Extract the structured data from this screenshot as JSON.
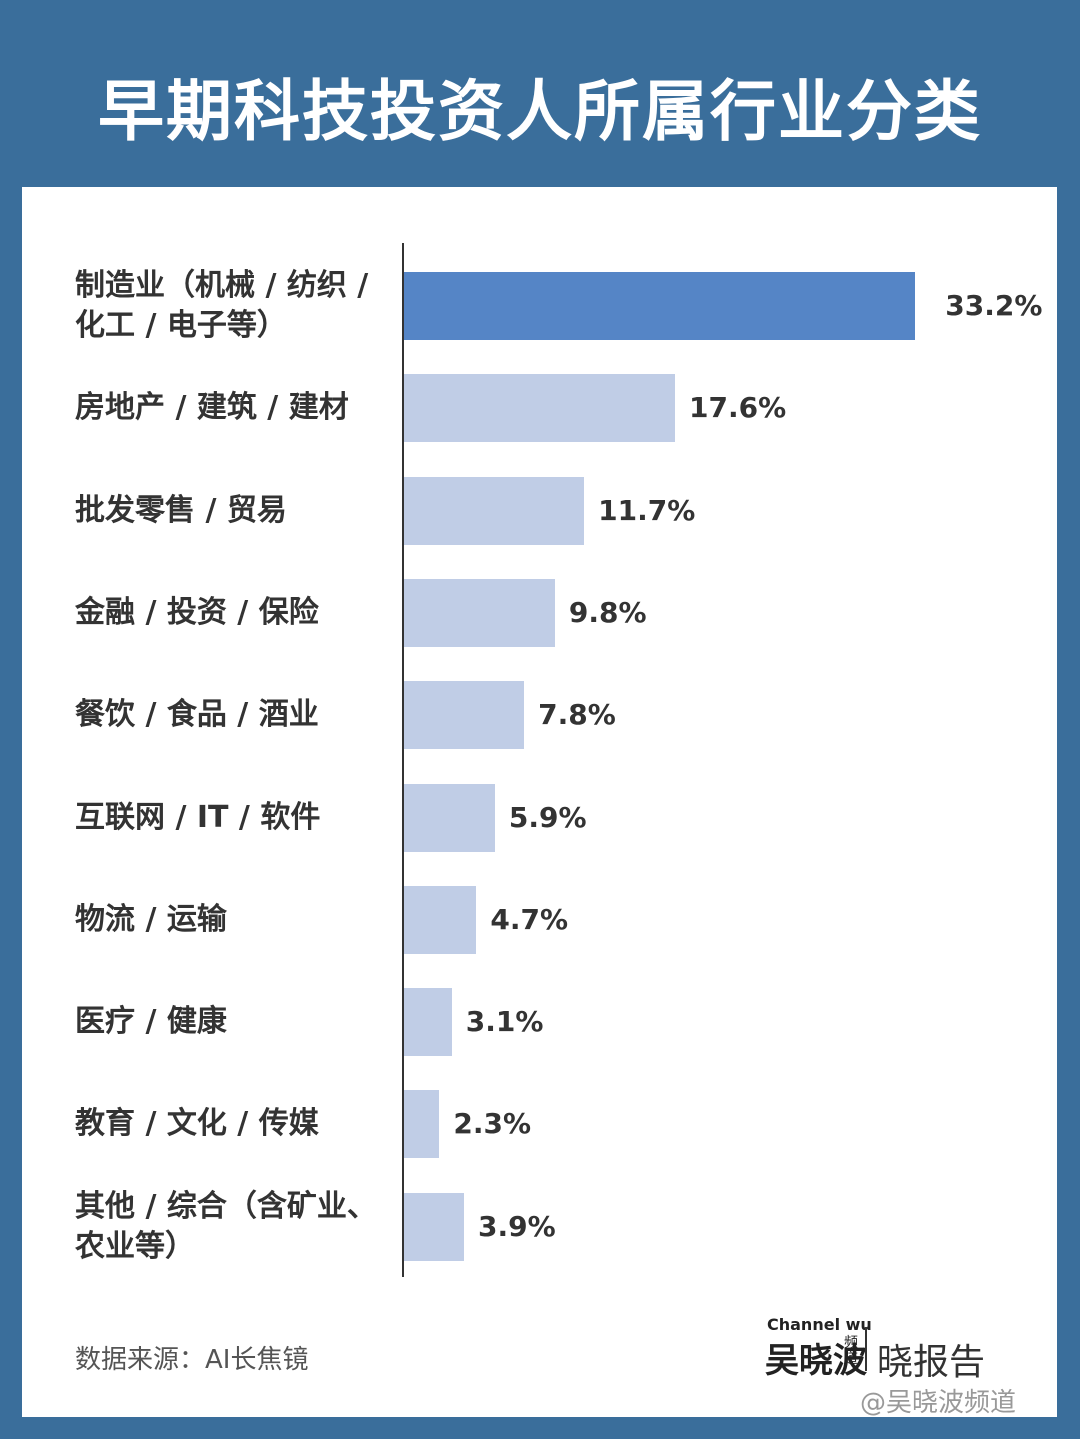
{
  "chart_data": {
    "type": "bar",
    "orientation": "horizontal",
    "title": "早期科技投资人所属行业分类",
    "categories": [
      "制造业（机械 / 纺织 / 化工 / 电子等）",
      "房地产 / 建筑 / 建材",
      "批发零售 / 贸易",
      "金融 / 投资 / 保险",
      "餐饮 / 食品 / 酒业",
      "互联网 / IT / 软件",
      "物流 / 运输",
      "医疗 / 健康",
      "教育 / 文化 / 传媒",
      "其他 / 综合（含矿业、农业等）"
    ],
    "values": [
      33.2,
      17.6,
      11.7,
      9.8,
      7.8,
      5.9,
      4.7,
      3.1,
      2.3,
      3.9
    ],
    "value_labels": [
      "33.2%",
      "17.6%",
      "11.7%",
      "9.8%",
      "7.8%",
      "5.9%",
      "4.7%",
      "3.1%",
      "2.3%",
      "3.9%"
    ],
    "colors": [
      "#5585c6",
      "#c0cde6",
      "#c0cde6",
      "#c0cde6",
      "#c0cde6",
      "#c0cde6",
      "#c0cde6",
      "#c0cde6",
      "#c0cde6",
      "#c0cde6"
    ],
    "source": "数据来源：AI长焦镜"
  },
  "branding": {
    "channel": "Channel wu",
    "name": "吴晓波",
    "name_small": "频道",
    "report": "晓报告",
    "watermark": "@吴晓波频道"
  }
}
